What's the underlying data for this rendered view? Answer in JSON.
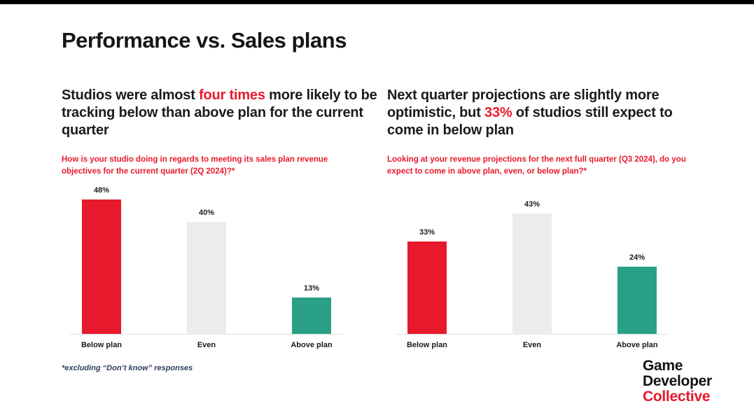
{
  "page": {
    "title": "Performance vs. Sales plans",
    "footnote": "*excluding “Don’t know” responses"
  },
  "left_section": {
    "headline_prefix": "Studios were almost ",
    "headline_highlight": "four times",
    "headline_suffix": " more likely to be tracking below than above plan for the current quarter"
  },
  "right_section": {
    "headline_prefix": "Next quarter projections are slightly more optimistic, but ",
    "headline_highlight": "33%",
    "headline_suffix": " of studios still expect to come in below plan"
  },
  "logo": {
    "line1": "Game",
    "line2": "Developer",
    "line3": "Collective"
  },
  "colors": {
    "accent_red": "#e8192c",
    "teal": "#2aa186",
    "bar_gray": "#ececec",
    "footnote_navy": "#2e3e5c"
  },
  "chart_data": [
    {
      "type": "bar",
      "title": "How is your studio doing in regards to meeting its sales plan revenue objectives for the current quarter (2Q 2024)?*",
      "categories": [
        "Below plan",
        "Even",
        "Above plan"
      ],
      "values": [
        48,
        40,
        13
      ],
      "value_labels": [
        "48%",
        "40%",
        "13%"
      ],
      "bar_colors": [
        "#e8192c",
        "#ececec",
        "#2aa186"
      ],
      "xlabel": "",
      "ylabel": "",
      "ylim": [
        0,
        50
      ],
      "grid": false,
      "legend": "none"
    },
    {
      "type": "bar",
      "title": "Looking at your revenue projections for the next full quarter (Q3 2024), do you expect to come in above plan, even, or below plan?*",
      "categories": [
        "Below plan",
        "Even",
        "Above plan"
      ],
      "values": [
        33,
        43,
        24
      ],
      "value_labels": [
        "33%",
        "43%",
        "24%"
      ],
      "bar_colors": [
        "#e8192c",
        "#ececec",
        "#2aa186"
      ],
      "xlabel": "",
      "ylabel": "",
      "ylim": [
        0,
        50
      ],
      "grid": false,
      "legend": "none"
    }
  ]
}
